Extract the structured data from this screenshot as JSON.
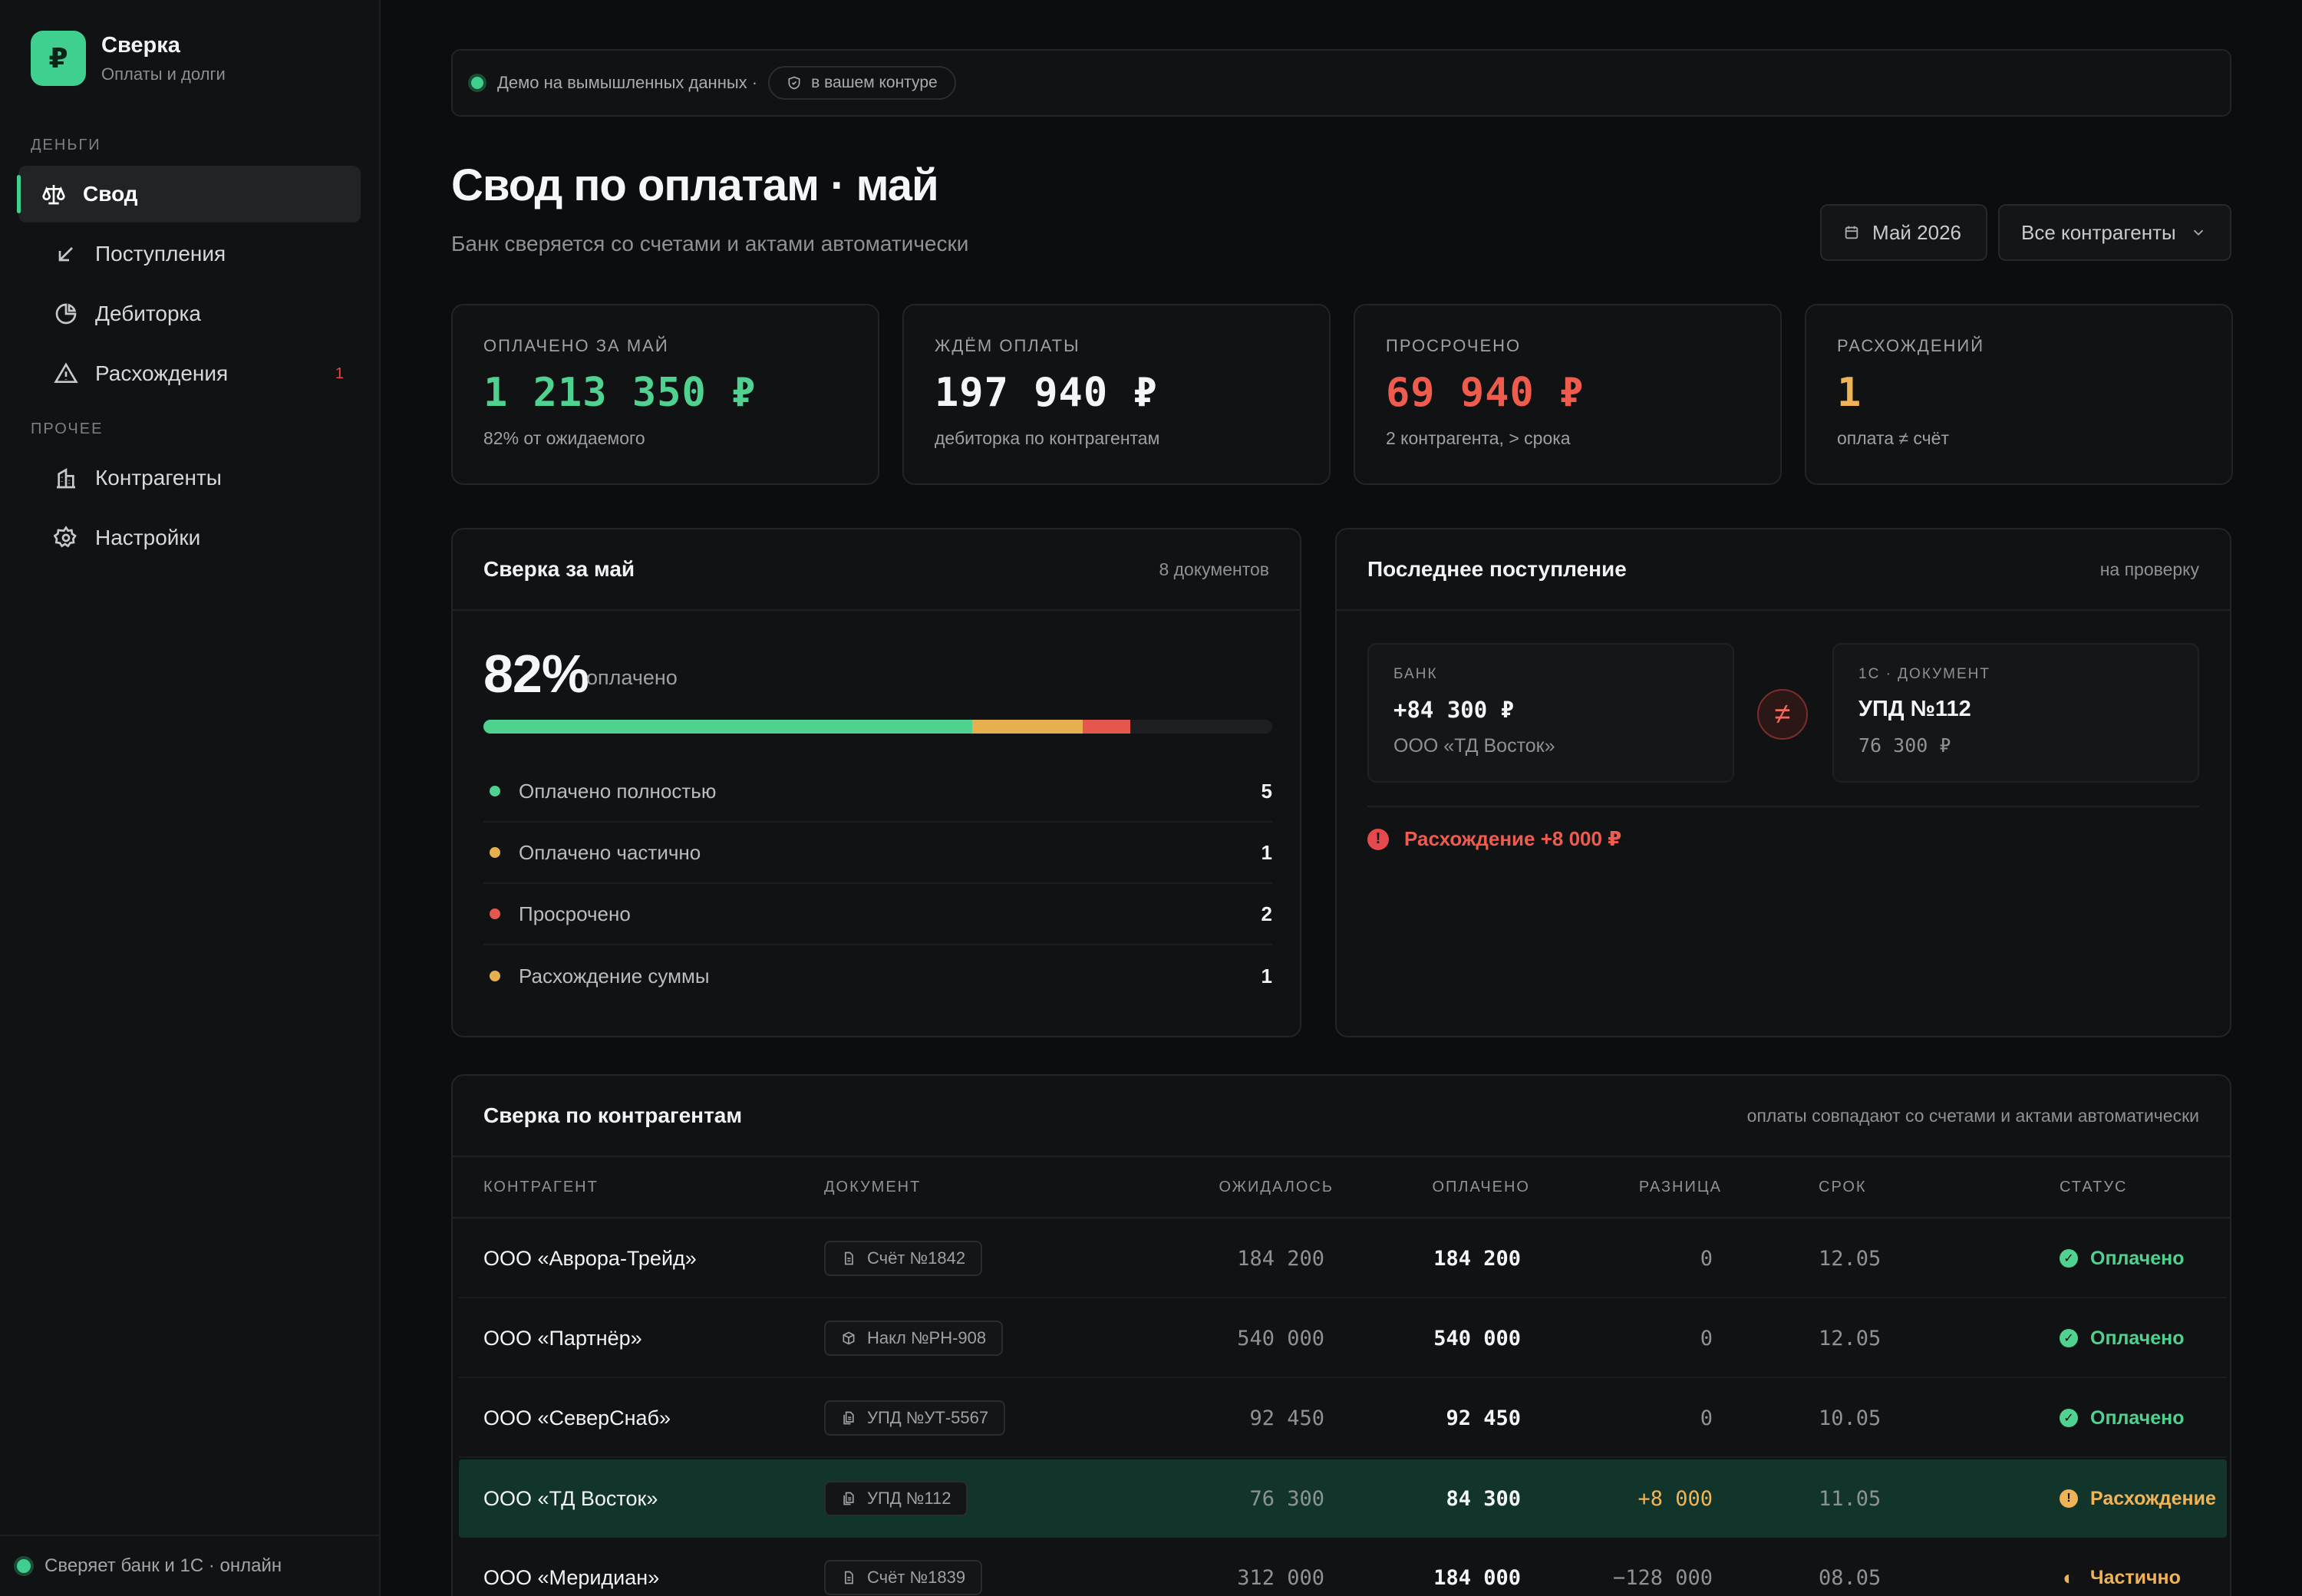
{
  "brand": {
    "logo": "₽",
    "title": "Сверка",
    "subtitle": "Оплаты и долги"
  },
  "sidebar": {
    "sections": [
      "ДЕНЬГИ",
      "ПРОЧЕЕ"
    ],
    "items": [
      {
        "label": "Свод",
        "icon": "scales-icon",
        "active": true
      },
      {
        "label": "Поступления",
        "icon": "arrow-down-left-icon"
      },
      {
        "label": "Дебиторка",
        "icon": "pie-chart-icon"
      },
      {
        "label": "Расхождения",
        "icon": "warning-icon",
        "badge": "1"
      },
      {
        "label": "Контрагенты",
        "icon": "building-icon"
      },
      {
        "label": "Настройки",
        "icon": "gear-icon"
      }
    ],
    "footer": "Сверяет банк и 1С · онлайн"
  },
  "demo_bar": {
    "text": "Демо на вымышленных данных ·",
    "chip": "в вашем контуре"
  },
  "header": {
    "title": "Свод по оплатам · май",
    "subtitle": "Банк сверяется со счетами и актами автоматически",
    "period": "Май 2026",
    "counterparty_filter": "Все контрагенты"
  },
  "kpis": [
    {
      "label": "ОПЛАЧЕНО ЗА МАЙ",
      "value": "1 213 350 ₽",
      "note": "82% от ожидаемого",
      "color": "#4fd18f"
    },
    {
      "label": "ЖДЁМ ОПЛАТЫ",
      "value": "197 940 ₽",
      "note": "дебиторка по контрагентам",
      "color": "#f4f5f6"
    },
    {
      "label": "ПРОСРОЧЕНО",
      "value": "69 940 ₽",
      "note": "2 контрагента, > срока",
      "color": "#ef5b4d"
    },
    {
      "label": "РАСХОЖДЕНИЙ",
      "value": "1",
      "note": "оплата ≠ счёт",
      "color": "#f0b356"
    }
  ],
  "reconcile": {
    "title": "Сверка за май",
    "meta": "8 документов",
    "percent": "82%",
    "percent_label": "оплачено",
    "progress": [
      {
        "share": 0.62,
        "color": "#4fd18f"
      },
      {
        "share": 0.14,
        "color": "#e6b04f"
      },
      {
        "share": 0.06,
        "color": "#e5574c"
      }
    ],
    "legend": [
      {
        "label": "Оплачено полностью",
        "count": "5",
        "color": "#4fd18f"
      },
      {
        "label": "Оплачено частично",
        "count": "1",
        "color": "#e6b04f"
      },
      {
        "label": "Просрочено",
        "count": "2",
        "color": "#e5574c"
      },
      {
        "label": "Расхождение суммы",
        "count": "1",
        "color": "#e6b04f"
      }
    ]
  },
  "last_payment": {
    "title": "Последнее поступление",
    "meta": "на проверку",
    "bank": {
      "label": "БАНК",
      "value": "+84 300 ₽",
      "sub": "ООО «ТД Восток»"
    },
    "doc": {
      "label": "1С · ДОКУМЕНТ",
      "value": "УПД №112",
      "sub": "76 300 ₽"
    },
    "neq_symbol": "≠",
    "alert": "Расхождение +8 000 ₽"
  },
  "table": {
    "title": "Сверка по контрагентам",
    "meta": "оплаты совпадают со счетами и актами автоматически",
    "columns": [
      "КОНТРАГЕНТ",
      "ДОКУМЕНТ",
      "ОЖИДАЛОСЬ",
      "ОПЛАЧЕНО",
      "РАЗНИЦА",
      "СРОК",
      "СТАТУС"
    ],
    "rows": [
      {
        "name": "ООО «Аврора-Трейд»",
        "doc": "Счёт №1842",
        "doc_icon": "document-icon",
        "expected": "184 200",
        "paid": "184 200",
        "diff": "0",
        "due": "12.05",
        "status": "Оплачено",
        "status_color": "#4fd18f",
        "status_icon": "✓"
      },
      {
        "name": "ООО «Партнёр»",
        "doc": "Накл №РН-908",
        "doc_icon": "box-icon",
        "expected": "540 000",
        "paid": "540 000",
        "diff": "0",
        "due": "12.05",
        "status": "Оплачено",
        "status_color": "#4fd18f",
        "status_icon": "✓"
      },
      {
        "name": "ООО «СеверСнаб»",
        "doc": "УПД №УТ-5567",
        "doc_icon": "documents-icon",
        "expected": "92 450",
        "paid": "92 450",
        "diff": "0",
        "due": "10.05",
        "status": "Оплачено",
        "status_color": "#4fd18f",
        "status_icon": "✓"
      },
      {
        "name": "ООО «ТД Восток»",
        "doc": "УПД №112",
        "doc_icon": "documents-icon",
        "expected": "76 300",
        "paid": "84 300",
        "diff": "+8 000",
        "diff_color": "#f0b356",
        "due": "11.05",
        "status": "Расхождение",
        "status_color": "#f0b356",
        "status_icon": "!",
        "highlight": true
      },
      {
        "name": "ООО «Меридиан»",
        "doc": "Счёт №1839",
        "doc_icon": "document-icon",
        "expected": "312 000",
        "paid": "184 000",
        "diff": "−128 000",
        "due": "08.05",
        "status": "Частично",
        "status_color": "#f0b356",
        "status_icon": "◐"
      }
    ]
  }
}
